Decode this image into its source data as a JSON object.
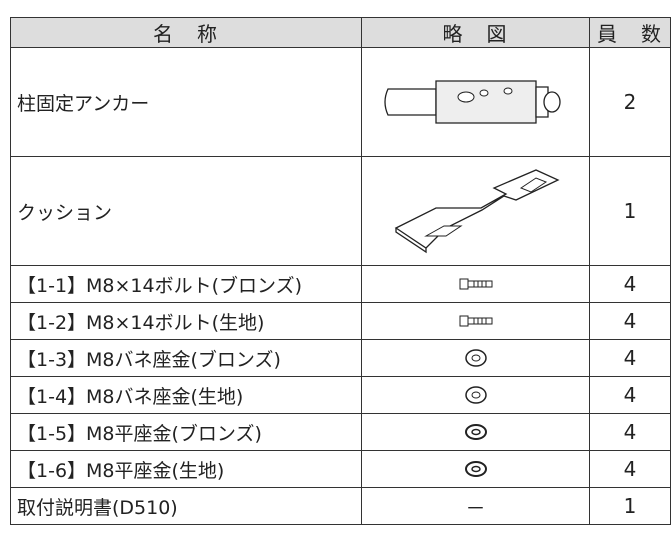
{
  "table": {
    "header": [
      "名　称",
      "略　図",
      "員　数"
    ],
    "rows": [
      {
        "name": "柱固定アンカー",
        "qty": 2
      },
      {
        "name": "クッション",
        "qty": 1
      },
      {
        "name": "【1-1】M8×14ボルト(ブロンズ)",
        "qty": 4
      },
      {
        "name": "【1-2】M8×14ボルト(生地)",
        "qty": 4
      },
      {
        "name": "【1-3】M8バネ座金(ブロンズ)",
        "qty": 4
      },
      {
        "name": "【1-4】M8バネ座金(生地)",
        "qty": 4
      },
      {
        "name": "【1-5】M8平座金(ブロンズ)",
        "qty": 4
      },
      {
        "name": "【1-6】M8平座金(生地)",
        "qty": 4
      },
      {
        "name": "取付説明書(D510)",
        "figure": "－",
        "qty": 1
      }
    ]
  }
}
